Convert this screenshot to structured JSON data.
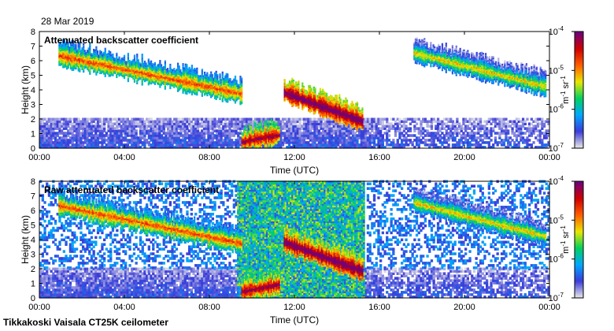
{
  "date": "28 Mar 2019",
  "footer": "Tikkakoski Vaisala CT25K ceilometer",
  "chart_data": [
    {
      "type": "heatmap",
      "title": "Attenuated backscatter coefficient",
      "xlabel": "Time (UTC)",
      "ylabel": "Height (km)",
      "xlim": [
        0,
        24
      ],
      "ylim": [
        0,
        8
      ],
      "x_tick_labels": [
        "00:00",
        "04:00",
        "08:00",
        "12:00",
        "16:00",
        "20:00",
        "00:00"
      ],
      "y_tick_labels": [
        "0",
        "1",
        "2",
        "3",
        "4",
        "5",
        "6",
        "7",
        "8"
      ],
      "colorbar": {
        "scale": "log",
        "range": [
          1e-07,
          0.0001
        ],
        "tick_labels": [
          "10-7",
          "10-6",
          "10-5",
          "10-4"
        ],
        "unit_label": "m-1 sr-1",
        "colors": [
          "#e6e6e6",
          "#3b3bd9",
          "#00a8ff",
          "#00d060",
          "#e8e800",
          "#ff6000",
          "#d00000",
          "#70007a"
        ]
      },
      "features": [
        {
          "name": "upper cloud (descending)",
          "t_start": 0.9,
          "t_end": 9.5,
          "h_start": 6.3,
          "h_end": 3.7,
          "intensity": -5.2
        },
        {
          "name": "boundary layer peak",
          "t_start": 9.5,
          "t_end": 11.3,
          "h_start": 0.4,
          "h_end": 0.9,
          "intensity": -4.6
        },
        {
          "name": "cloud layer",
          "t_start": 11.5,
          "t_end": 15.2,
          "h_start": 3.8,
          "h_end": 1.8,
          "intensity": -4.3
        },
        {
          "name": "late upper cloud",
          "t_start": 17.6,
          "t_end": 23.8,
          "h_start": 6.5,
          "h_end": 4.2,
          "intensity": -5.6
        }
      ]
    },
    {
      "type": "heatmap",
      "title": "Raw attenuated backscatter coefficient",
      "xlabel": "Time (UTC)",
      "ylabel": "Height (km)",
      "xlim": [
        0,
        24
      ],
      "ylim": [
        0,
        8
      ],
      "x_tick_labels": [
        "00:00",
        "04:00",
        "08:00",
        "12:00",
        "16:00",
        "20:00",
        "00:00"
      ],
      "y_tick_labels": [
        "0",
        "1",
        "2",
        "3",
        "4",
        "5",
        "6",
        "7",
        "8"
      ],
      "colorbar": {
        "scale": "log",
        "range": [
          1e-07,
          0.0001
        ],
        "tick_labels": [
          "10-7",
          "10-6",
          "10-5",
          "10-4"
        ],
        "unit_label": "m-1 sr-1",
        "colors": [
          "#e6e6e6",
          "#3b3bd9",
          "#00a8ff",
          "#00d060",
          "#e8e800",
          "#ff6000",
          "#d00000",
          "#70007a"
        ]
      },
      "features": [
        {
          "name": "noise region",
          "t_start": 9.3,
          "t_end": 15.3,
          "h_start": 0,
          "h_end": 8,
          "intensity": -5.9
        },
        {
          "name": "upper cloud (descending)",
          "t_start": 0.9,
          "t_end": 9.5,
          "h_start": 6.3,
          "h_end": 3.7,
          "intensity": -5.2
        },
        {
          "name": "boundary layer peak",
          "t_start": 9.5,
          "t_end": 11.3,
          "h_start": 0.4,
          "h_end": 0.9,
          "intensity": -4.6
        },
        {
          "name": "cloud layer",
          "t_start": 11.5,
          "t_end": 15.2,
          "h_start": 3.8,
          "h_end": 1.8,
          "intensity": -4.3
        },
        {
          "name": "late upper cloud",
          "t_start": 17.6,
          "t_end": 23.8,
          "h_start": 6.5,
          "h_end": 4.2,
          "intensity": -5.6
        }
      ]
    }
  ]
}
